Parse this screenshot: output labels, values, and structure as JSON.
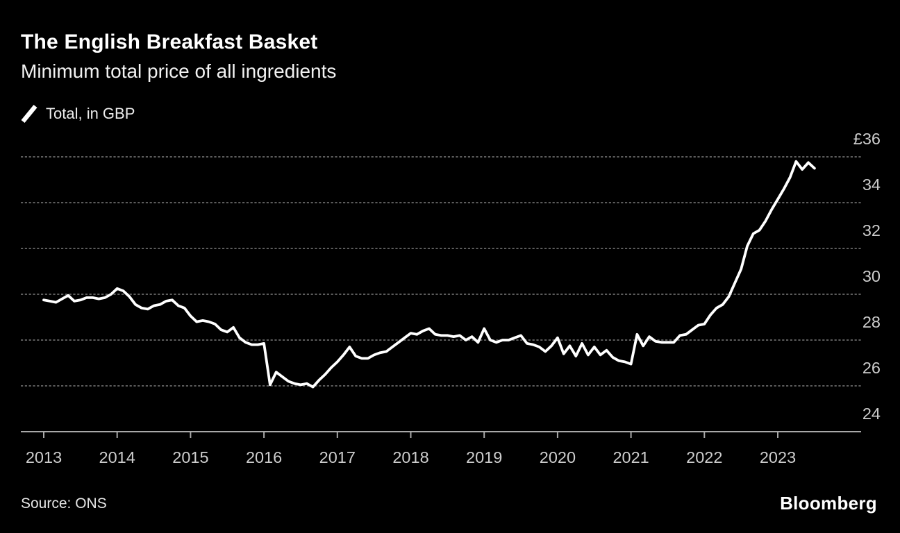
{
  "header": {
    "title": "The English Breakfast Basket",
    "subtitle": "Minimum total price of all ingredients"
  },
  "legend": {
    "label": "Total, in GBP"
  },
  "source": {
    "label": "Source: ONS"
  },
  "branding": {
    "logo": "Bloomberg"
  },
  "colors": {
    "background": "#000000",
    "line": "#ffffff",
    "grid": "#5c5c5c",
    "axis": "#a8a8a8",
    "tick_label": "#cdcdcd"
  },
  "chart_data": {
    "type": "line",
    "title": "The English Breakfast Basket",
    "subtitle": "Minimum total price of all ingredients",
    "series_name": "Total, in GBP",
    "unit": "GBP",
    "grid": "horizontal-dotted",
    "legend_position": "top-left",
    "ylim": [
      24,
      36.4
    ],
    "y_axis": [
      {
        "label": "£36",
        "value": 36
      },
      {
        "label": "34",
        "value": 34
      },
      {
        "label": "32",
        "value": 32
      },
      {
        "label": "30",
        "value": 30
      },
      {
        "label": "28",
        "value": 28
      },
      {
        "label": "26",
        "value": 26
      },
      {
        "label": "24",
        "value": 24
      }
    ],
    "x_tick_labels": [
      "2013",
      "2014",
      "2015",
      "2016",
      "2017",
      "2018",
      "2019",
      "2020",
      "2021",
      "2022",
      "2023"
    ],
    "x_start": "2013-01",
    "x_end": "2023-07",
    "points_per_year": 12,
    "values": [
      29.75,
      29.7,
      29.65,
      29.8,
      29.95,
      29.7,
      29.75,
      29.85,
      29.85,
      29.8,
      29.85,
      30.0,
      30.25,
      30.15,
      29.9,
      29.55,
      29.4,
      29.35,
      29.5,
      29.55,
      29.7,
      29.75,
      29.5,
      29.4,
      29.05,
      28.8,
      28.85,
      28.8,
      28.7,
      28.45,
      28.35,
      28.55,
      28.1,
      27.9,
      27.8,
      27.8,
      27.85,
      26.05,
      26.6,
      26.4,
      26.2,
      26.1,
      26.05,
      26.1,
      25.95,
      26.25,
      26.5,
      26.8,
      27.05,
      27.35,
      27.7,
      27.3,
      27.2,
      27.2,
      27.35,
      27.45,
      27.5,
      27.7,
      27.9,
      28.1,
      28.3,
      28.25,
      28.4,
      28.5,
      28.25,
      28.2,
      28.2,
      28.15,
      28.2,
      28.0,
      28.15,
      27.9,
      28.5,
      28.0,
      27.9,
      28.0,
      28.0,
      28.1,
      28.2,
      27.85,
      27.8,
      27.7,
      27.5,
      27.75,
      28.1,
      27.4,
      27.75,
      27.3,
      27.85,
      27.35,
      27.7,
      27.35,
      27.55,
      27.25,
      27.1,
      27.05,
      26.95,
      28.25,
      27.75,
      28.15,
      27.95,
      27.9,
      27.9,
      27.9,
      28.2,
      28.25,
      28.45,
      28.65,
      28.7,
      29.1,
      29.4,
      29.55,
      29.9,
      30.5,
      31.1,
      32.1,
      32.65,
      32.8,
      33.2,
      33.7,
      34.15,
      34.6,
      35.1,
      35.8,
      35.45,
      35.75,
      35.5
    ]
  }
}
